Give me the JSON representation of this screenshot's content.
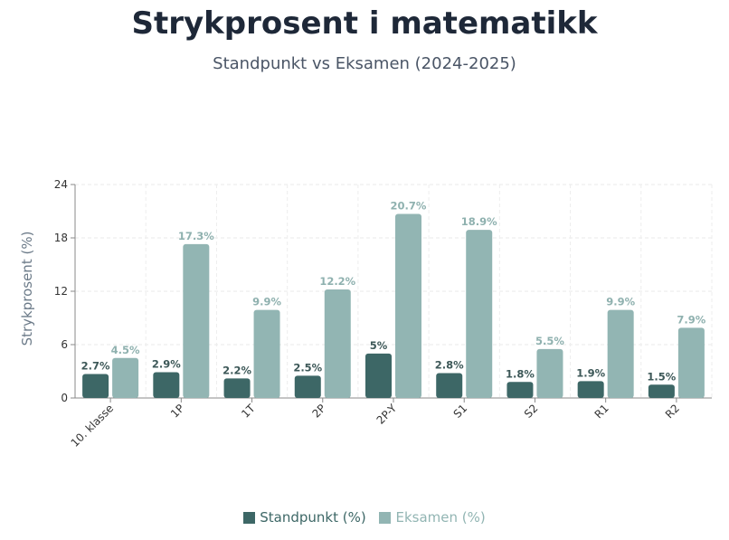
{
  "chart_data": {
    "type": "bar",
    "title": "Strykprosent i matematikk",
    "subtitle": "Standpunkt vs Eksamen (2024-2025)",
    "ylabel": "Strykprosent (%)",
    "xlabel": "",
    "ylim": [
      0,
      24
    ],
    "yticks": [
      0,
      6,
      12,
      18,
      24
    ],
    "grid": true,
    "legend_position": "bottom",
    "categories": [
      "10. klasse",
      "1P",
      "1T",
      "2P",
      "2P-Y",
      "S1",
      "S2",
      "R1",
      "R2"
    ],
    "series": [
      {
        "name": "Standpunkt (%)",
        "color": "#3d6766",
        "values": [
          2.7,
          2.9,
          2.2,
          2.5,
          5,
          2.8,
          1.8,
          1.9,
          1.5
        ],
        "labels": [
          "2.7%",
          "2.9%",
          "2.2%",
          "2.5%",
          "5%",
          "2.8%",
          "1.8%",
          "1.9%",
          "1.5%"
        ]
      },
      {
        "name": "Eksamen (%)",
        "color": "#92b5b3",
        "values": [
          4.5,
          17.3,
          9.9,
          12.2,
          20.7,
          18.9,
          5.5,
          9.9,
          7.9
        ],
        "labels": [
          "4.5%",
          "17.3%",
          "9.9%",
          "12.2%",
          "20.7%",
          "18.9%",
          "5.5%",
          "9.9%",
          "7.9%"
        ]
      }
    ]
  }
}
